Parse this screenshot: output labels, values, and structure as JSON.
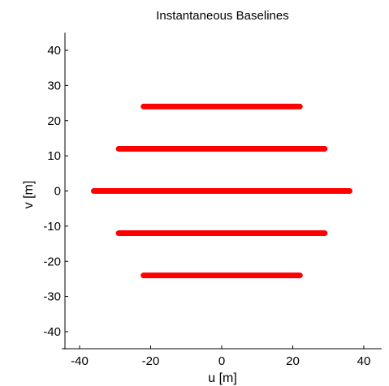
{
  "chart_data": {
    "type": "scatter",
    "title": "Instantaneous Baselines",
    "xlabel": "u [m]",
    "ylabel": "v [m]",
    "xlim": [
      -45,
      45
    ],
    "ylim": [
      -45,
      45
    ],
    "xticks": [
      -40,
      -20,
      0,
      20,
      40
    ],
    "yticks": [
      40,
      30,
      20,
      10,
      0,
      -10,
      -20,
      -30,
      -40
    ],
    "grid": false,
    "marker_color": "#ff0000",
    "series": [
      {
        "values": [
          {
            "x_start": -22,
            "x_end": 22,
            "y": 24
          },
          {
            "x_start": -29,
            "x_end": 29,
            "y": 12
          },
          {
            "x_start": -36,
            "x_end": 36,
            "y": 0
          },
          {
            "x_start": -29,
            "x_end": 29,
            "y": -12
          },
          {
            "x_start": -22,
            "x_end": 22,
            "y": -24
          }
        ]
      }
    ]
  }
}
